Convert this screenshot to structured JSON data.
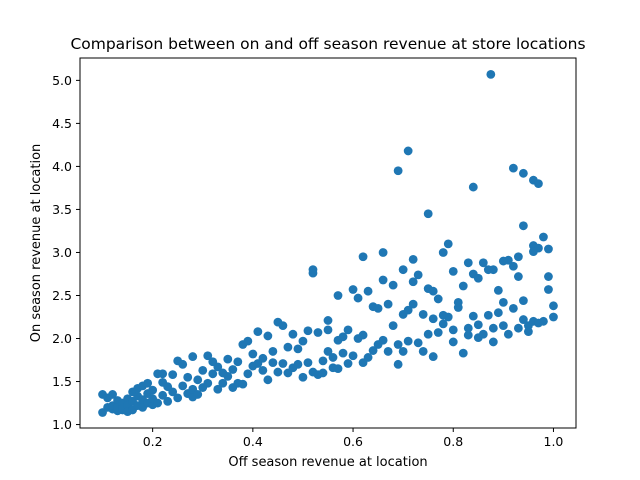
{
  "chart_data": {
    "type": "scatter",
    "title": "Comparison between on and off season revenue at store locations",
    "xlabel": "Off season revenue at location",
    "ylabel": "On season revenue at location",
    "xlim": [
      0.055,
      1.045
    ],
    "ylim": [
      0.96,
      5.26
    ],
    "xticks": [
      "0.2",
      "0.4",
      "0.6",
      "0.8",
      "1.0"
    ],
    "yticks": [
      "1.0",
      "1.5",
      "2.0",
      "2.5",
      "3.0",
      "3.5",
      "4.0",
      "4.5",
      "5.0"
    ],
    "grid": false,
    "marker_color": "#1f77b4",
    "x": [
      0.1,
      0.1,
      0.11,
      0.11,
      0.12,
      0.12,
      0.12,
      0.13,
      0.13,
      0.13,
      0.14,
      0.14,
      0.14,
      0.15,
      0.15,
      0.15,
      0.16,
      0.16,
      0.16,
      0.17,
      0.17,
      0.17,
      0.18,
      0.18,
      0.18,
      0.19,
      0.19,
      0.19,
      0.2,
      0.2,
      0.2,
      0.21,
      0.21,
      0.22,
      0.22,
      0.22,
      0.23,
      0.23,
      0.24,
      0.24,
      0.25,
      0.25,
      0.26,
      0.26,
      0.27,
      0.27,
      0.28,
      0.28,
      0.28,
      0.29,
      0.29,
      0.3,
      0.3,
      0.31,
      0.31,
      0.32,
      0.32,
      0.33,
      0.33,
      0.34,
      0.34,
      0.35,
      0.35,
      0.36,
      0.36,
      0.37,
      0.37,
      0.38,
      0.38,
      0.39,
      0.39,
      0.4,
      0.4,
      0.41,
      0.41,
      0.42,
      0.42,
      0.43,
      0.43,
      0.44,
      0.44,
      0.45,
      0.45,
      0.46,
      0.46,
      0.47,
      0.47,
      0.48,
      0.48,
      0.49,
      0.49,
      0.5,
      0.5,
      0.51,
      0.51,
      0.52,
      0.52,
      0.53,
      0.53,
      0.54,
      0.54,
      0.55,
      0.55,
      0.56,
      0.56,
      0.57,
      0.57,
      0.58,
      0.58,
      0.59,
      0.59,
      0.6,
      0.6,
      0.61,
      0.61,
      0.62,
      0.62,
      0.63,
      0.63,
      0.64,
      0.64,
      0.65,
      0.65,
      0.66,
      0.66,
      0.67,
      0.67,
      0.68,
      0.68,
      0.69,
      0.69,
      0.7,
      0.7,
      0.71,
      0.71,
      0.72,
      0.72,
      0.73,
      0.73,
      0.74,
      0.74,
      0.75,
      0.75,
      0.76,
      0.76,
      0.77,
      0.77,
      0.78,
      0.78,
      0.79,
      0.79,
      0.8,
      0.8,
      0.81,
      0.81,
      0.82,
      0.82,
      0.83,
      0.83,
      0.84,
      0.84,
      0.85,
      0.85,
      0.86,
      0.86,
      0.87,
      0.87,
      0.88,
      0.88,
      0.89,
      0.89,
      0.9,
      0.9,
      0.91,
      0.91,
      0.92,
      0.92,
      0.93,
      0.93,
      0.94,
      0.94,
      0.95,
      0.95,
      0.96,
      0.96,
      0.97,
      0.97,
      0.98,
      0.98,
      0.99,
      0.99,
      1.0,
      1.0,
      0.52,
      0.55,
      0.57,
      0.62,
      0.66,
      0.7,
      0.72,
      0.76,
      0.78,
      0.8,
      0.83,
      0.85,
      0.88,
      0.9,
      0.93,
      0.96,
      0.99,
      0.69,
      0.71,
      0.84,
      0.92,
      0.94,
      0.96,
      0.97,
      0.75,
      0.94,
      0.875
    ],
    "y": [
      1.35,
      1.14,
      1.2,
      1.31,
      1.18,
      1.35,
      1.22,
      1.16,
      1.28,
      1.2,
      1.17,
      1.25,
      1.19,
      1.3,
      1.22,
      1.15,
      1.38,
      1.17,
      1.27,
      1.42,
      1.22,
      1.33,
      1.29,
      1.45,
      1.2,
      1.36,
      1.25,
      1.48,
      1.23,
      1.4,
      1.3,
      1.59,
      1.25,
      1.34,
      1.49,
      1.59,
      1.27,
      1.44,
      1.38,
      1.58,
      1.31,
      1.74,
      1.45,
      1.7,
      1.36,
      1.55,
      1.32,
      1.41,
      1.79,
      1.35,
      1.52,
      1.43,
      1.63,
      1.48,
      1.8,
      1.59,
      1.73,
      1.41,
      1.67,
      1.6,
      1.48,
      1.56,
      1.76,
      1.64,
      1.43,
      1.48,
      1.73,
      1.93,
      1.47,
      1.59,
      1.97,
      1.82,
      1.68,
      1.71,
      2.08,
      1.77,
      1.63,
      1.52,
      2.03,
      1.72,
      1.85,
      1.61,
      2.19,
      1.71,
      2.15,
      1.6,
      1.9,
      1.66,
      2.05,
      1.7,
      1.88,
      1.55,
      1.97,
      2.09,
      1.72,
      1.61,
      2.76,
      1.58,
      2.07,
      1.74,
      1.6,
      1.85,
      2.21,
      1.66,
      1.78,
      1.65,
      1.98,
      1.83,
      2.02,
      1.71,
      2.1,
      1.8,
      2.57,
      2.0,
      2.47,
      1.72,
      2.04,
      1.78,
      2.55,
      1.86,
      2.37,
      1.93,
      2.35,
      2.68,
      1.98,
      2.4,
      1.85,
      2.62,
      2.15,
      1.7,
      1.93,
      2.28,
      1.85,
      1.97,
      2.33,
      2.92,
      2.4,
      1.95,
      2.74,
      1.85,
      2.28,
      2.05,
      2.58,
      1.79,
      2.23,
      2.46,
      2.07,
      3.0,
      2.17,
      3.1,
      2.25,
      2.1,
      1.96,
      2.36,
      2.42,
      1.83,
      2.61,
      2.12,
      2.04,
      2.26,
      2.75,
      2.01,
      2.16,
      2.88,
      2.05,
      2.27,
      2.8,
      2.12,
      1.96,
      2.3,
      2.56,
      2.15,
      2.42,
      2.91,
      2.05,
      2.35,
      2.84,
      2.12,
      2.72,
      2.44,
      2.22,
      2.15,
      2.08,
      3.08,
      2.2,
      3.05,
      2.18,
      2.2,
      3.18,
      2.57,
      2.72,
      2.38,
      2.25,
      2.8,
      2.1,
      2.5,
      2.95,
      3.0,
      2.8,
      2.66,
      2.55,
      2.27,
      2.78,
      2.88,
      2.7,
      2.8,
      2.9,
      2.95,
      3.01,
      3.04,
      3.95,
      4.18,
      3.76,
      3.98,
      3.31,
      3.84,
      3.8,
      3.45,
      3.92,
      5.07
    ]
  }
}
